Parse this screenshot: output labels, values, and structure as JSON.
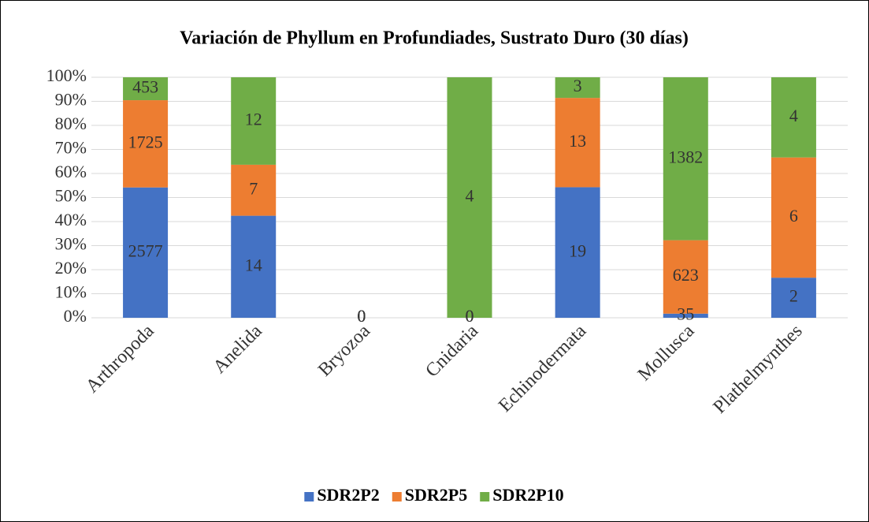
{
  "chart_data": {
    "type": "bar",
    "stacking": "percent",
    "title": "Variación de Phyllum en Profundiades, Sustrato Duro (30 días)",
    "categories": [
      "Arthropoda",
      "Anelida",
      "Bryozoa",
      "Cnidaria",
      "Echinodermata",
      "Mollusca",
      "Plathelmynthes"
    ],
    "series": [
      {
        "name": "SDR2P2",
        "color": "#4472c4",
        "values": [
          2577,
          14,
          0,
          0,
          19,
          35,
          2
        ]
      },
      {
        "name": "SDR2P5",
        "color": "#ed7d31",
        "values": [
          1725,
          7,
          0,
          0,
          13,
          623,
          6
        ]
      },
      {
        "name": "SDR2P10",
        "color": "#70ad47",
        "values": [
          453,
          12,
          0,
          4,
          3,
          1382,
          4
        ]
      }
    ],
    "ylim": [
      0,
      100
    ],
    "yticks": [
      {
        "value": 0,
        "label": "0%"
      },
      {
        "value": 10,
        "label": "10%"
      },
      {
        "value": 20,
        "label": "20%"
      },
      {
        "value": 30,
        "label": "30%"
      },
      {
        "value": 40,
        "label": "40%"
      },
      {
        "value": 50,
        "label": "50%"
      },
      {
        "value": 60,
        "label": "60%"
      },
      {
        "value": 70,
        "label": "70%"
      },
      {
        "value": 80,
        "label": "80%"
      },
      {
        "value": 90,
        "label": "90%"
      },
      {
        "value": 100,
        "label": "100%"
      }
    ],
    "grid": true,
    "legend": "bottom"
  }
}
